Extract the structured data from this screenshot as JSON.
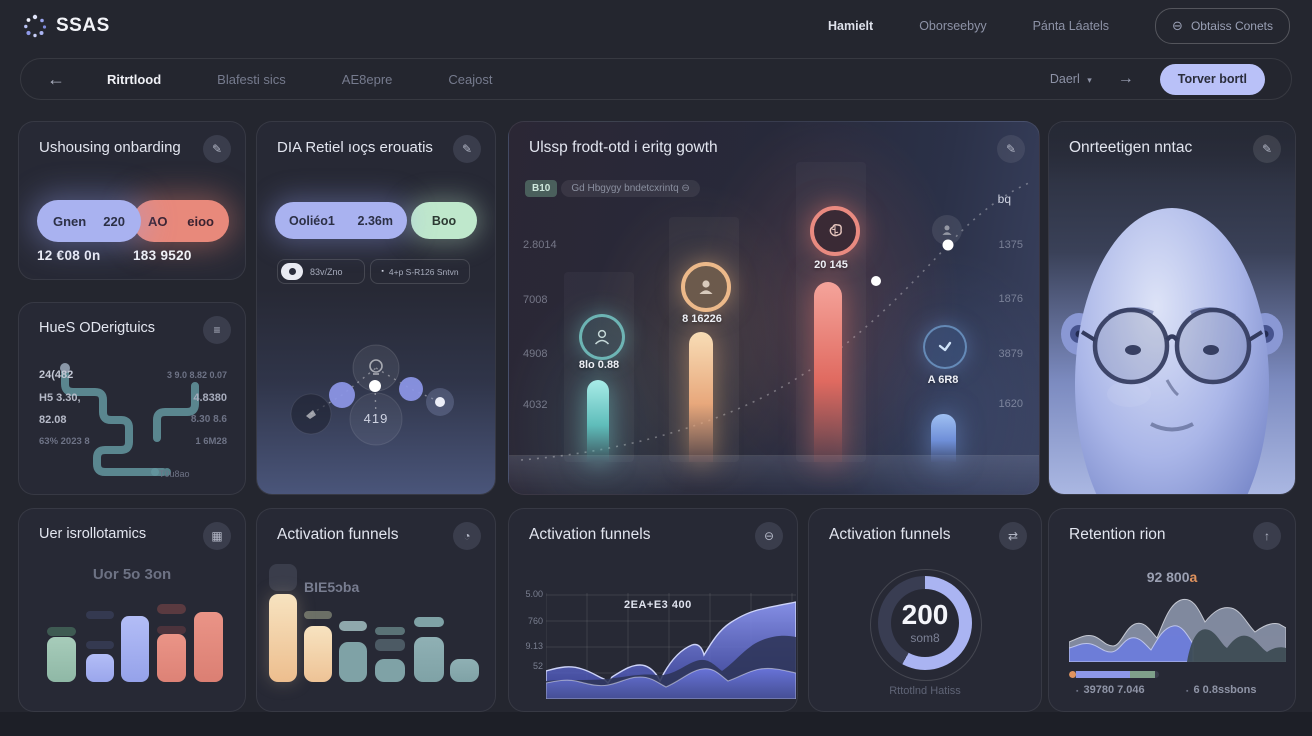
{
  "theme": {
    "page_bg": "#24262f",
    "card_bg": "#272935",
    "accent": "#aab4f2",
    "salmon": "#e58a7d",
    "teal": "#7ed8d4",
    "cream": "#f6ddb4",
    "green": "#bfe8cc",
    "lavender_btn": "#b9c1f8",
    "orange": "#e0935e"
  },
  "icons": {
    "edit": "✎",
    "menu": "≡",
    "grid": "▦",
    "clock": "◔",
    "minus_circle": "⊖",
    "swap": "⇄",
    "up": "↑",
    "back_arrow": "←",
    "forward_arrow": "→",
    "chevron": "▾",
    "dot": "▪"
  },
  "header": {
    "logo": "SSAS",
    "nav": [
      {
        "label": "Hamielt"
      },
      {
        "label": "Oborseebyy"
      },
      {
        "label": "Pánta Láatels"
      }
    ],
    "cta_label": "Obtaiss Conets"
  },
  "toolbar": {
    "tabs": [
      {
        "label": "Ritrtlood"
      },
      {
        "label": "Blafesti sics"
      },
      {
        "label": "AE8epre"
      },
      {
        "label": "Ceajost"
      }
    ],
    "dropdown_label": "Daerl",
    "action_label": "Torver bortl"
  },
  "cards": {
    "onboarding": {
      "title": "Ushousing onbarding",
      "pill_blue_label": "Gnen",
      "pill_blue_value": "220",
      "pill_red_label": "AO",
      "pill_red_value": "eioo",
      "stat_left": "12 €08 0n",
      "stat_right": "183 9520"
    },
    "diagnostics": {
      "title": "HueS ODerigtuics",
      "left_labels": [
        "24(482",
        "H5 3.30,",
        "82.08",
        "63% 2023 8"
      ],
      "right_labels": [
        "3 9.0 8.82 0.07",
        "4.8380",
        "8.30 8.6",
        "1 6M28"
      ],
      "footer_label": "T0u8ao"
    },
    "dia": {
      "title": "DIA Retiel ıoçs erouatis",
      "pill_main_label": "Ooliéo1",
      "pill_main_value": "2.36m",
      "pill_green_label": "Boo",
      "chip_toggle_label": "83v/Zno",
      "chip_second_label": "4+p S-R126 Sntvn",
      "node_value": "419"
    },
    "growth": {
      "title": "Ulssp frodt-otd i eritg gowth",
      "badge": "B10",
      "badge_text": "Gd Hbgygy bndetcxrintq ⊖",
      "corner_label": "bq",
      "left_axis": [
        "2.8014",
        "7008",
        "4908",
        "4032"
      ],
      "right_axis": [
        "1375",
        "1876",
        "3879",
        "1620"
      ],
      "bar_labels": [
        "8lo 0.88",
        "8 16226",
        "20 145",
        "A 6R8"
      ]
    },
    "head": {
      "title": "Onrteetigen nntac"
    },
    "demographics": {
      "title": "Uer isrollotamics",
      "subtitle": "Uor 5o 3on"
    },
    "funnel": {
      "title": "Activation funnels",
      "label": "BIE5ɔba"
    },
    "area": {
      "title": "Activation funnels",
      "annotation": "2EA+E3 400",
      "y_labels": [
        "5.00",
        "760",
        "9.13",
        "52"
      ]
    },
    "gauge": {
      "title": "Activation funnels",
      "value": "200",
      "unit": "som8",
      "caption": "Rttotlnd Hatiss"
    },
    "retention": {
      "title": "Retention rion",
      "value": "92 800",
      "value_suffix": "a",
      "stat_left": "39780 7.046",
      "stat_right": "6 0.8ssbons"
    }
  },
  "chart_data": {
    "growth": {
      "type": "bar",
      "categories": [
        "8lo 0.88",
        "8 16226",
        "20 145",
        "A 6R8"
      ],
      "values": [
        82,
        130,
        180,
        48
      ],
      "colors": [
        "#7ed8d4",
        "#f0c08a",
        "#ec8276",
        "#7e9fe8"
      ],
      "left_axis": [
        "2.8014",
        "7008",
        "4908",
        "4032"
      ],
      "right_axis": [
        "1375",
        "1876",
        "3879",
        "1620"
      ],
      "trend": "dashed rising curve with 2 white dots",
      "legend_position": "none",
      "grid": false
    },
    "demographics": {
      "type": "bar",
      "values": [
        45,
        28,
        66,
        48,
        70
      ],
      "colors": [
        "#9dc4b4",
        "#aab6f2",
        "#aab6f2",
        "#e2897e",
        "#e2897e"
      ],
      "title": "Uer isrollotamics",
      "grid": false
    },
    "funnel": {
      "type": "bar",
      "values": [
        88,
        56,
        40,
        23,
        45,
        23
      ],
      "colors": [
        "#f2d4a8",
        "#f2d4a8",
        "#7fa2a6",
        "#7fa2a6",
        "#7fa2a6",
        "#7fa2a6"
      ],
      "title": "Activation funnels",
      "grid": false
    },
    "area": {
      "type": "area",
      "y_labels": [
        "5.00",
        "760",
        "9.13",
        "52"
      ],
      "series": [
        {
          "name": "activation",
          "values": [
            52,
            50,
            55,
            48,
            60,
            55,
            72,
            64,
            88,
            102,
            94,
            100
          ]
        }
      ],
      "annotation": "2EA+E3 400",
      "grid": true
    },
    "gauge": {
      "type": "donut",
      "value": 200,
      "percent": 58,
      "unit": "som8"
    },
    "retention": {
      "type": "area",
      "value": "92 800a",
      "series": [
        {
          "name": "waves",
          "values": [
            40,
            35,
            48,
            30,
            58,
            80,
            62,
            55,
            70,
            45,
            60,
            50
          ]
        }
      ],
      "progress_segments": [
        {
          "color": "#e0935e",
          "pct": 5
        },
        {
          "color": "#8d97e8",
          "pct": 60
        },
        {
          "color": "#7fa08a",
          "pct": 28
        }
      ]
    },
    "dia_network": {
      "type": "scatter",
      "nodes": [
        {
          "name": "hub",
          "label": ""
        },
        {
          "name": "value-node",
          "label": "419"
        },
        {
          "name": "dot-left"
        },
        {
          "name": "dot-right"
        },
        {
          "name": "icon-node-left"
        },
        {
          "name": "dot-node-far-right"
        }
      ]
    }
  }
}
